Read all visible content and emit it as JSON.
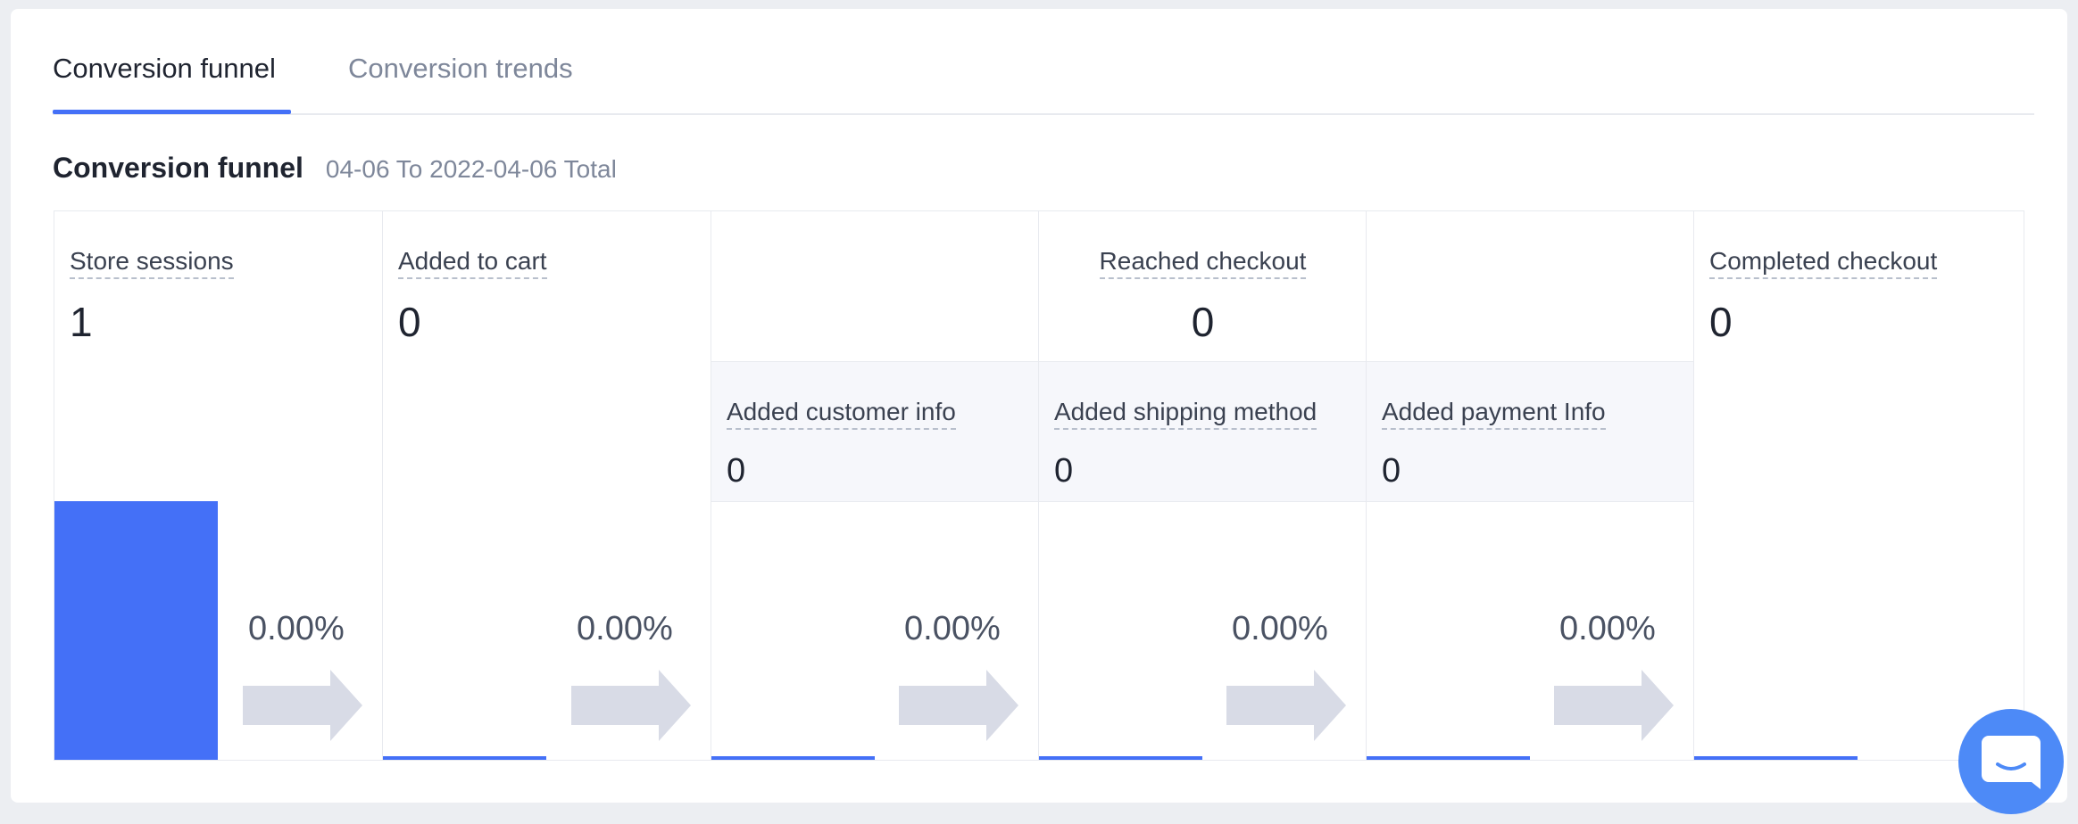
{
  "tabs": [
    {
      "label": "Conversion funnel",
      "active": true
    },
    {
      "label": "Conversion trends",
      "active": false
    }
  ],
  "section": {
    "title": "Conversion funnel",
    "date_range": "04-06 To 2022-04-06 Total"
  },
  "funnel": {
    "store_sessions": {
      "label": "Store sessions",
      "value": "1",
      "rate": "0.00%",
      "bar_fraction": 1.0
    },
    "added_to_cart": {
      "label": "Added to cart",
      "value": "0",
      "rate": "0.00%",
      "bar_fraction": 0
    },
    "reached_checkout": {
      "label": "Reached checkout",
      "value": "0",
      "steps": [
        {
          "label": "Added customer info",
          "value": "0",
          "rate": "0.00%",
          "bar_fraction": 0
        },
        {
          "label": "Added shipping method",
          "value": "0",
          "rate": "0.00%",
          "bar_fraction": 0
        },
        {
          "label": "Added payment Info",
          "value": "0",
          "rate": "0.00%",
          "bar_fraction": 0
        }
      ]
    },
    "completed_checkout": {
      "label": "Completed checkout",
      "value": "0",
      "bar_fraction": 0
    }
  },
  "colors": {
    "accent": "#4470f7",
    "arrow": "#d8dbe6",
    "chat_button": "#4d8af7"
  },
  "icons": {
    "arrow": "right-arrow-icon",
    "chat": "chat-bubble-icon"
  }
}
